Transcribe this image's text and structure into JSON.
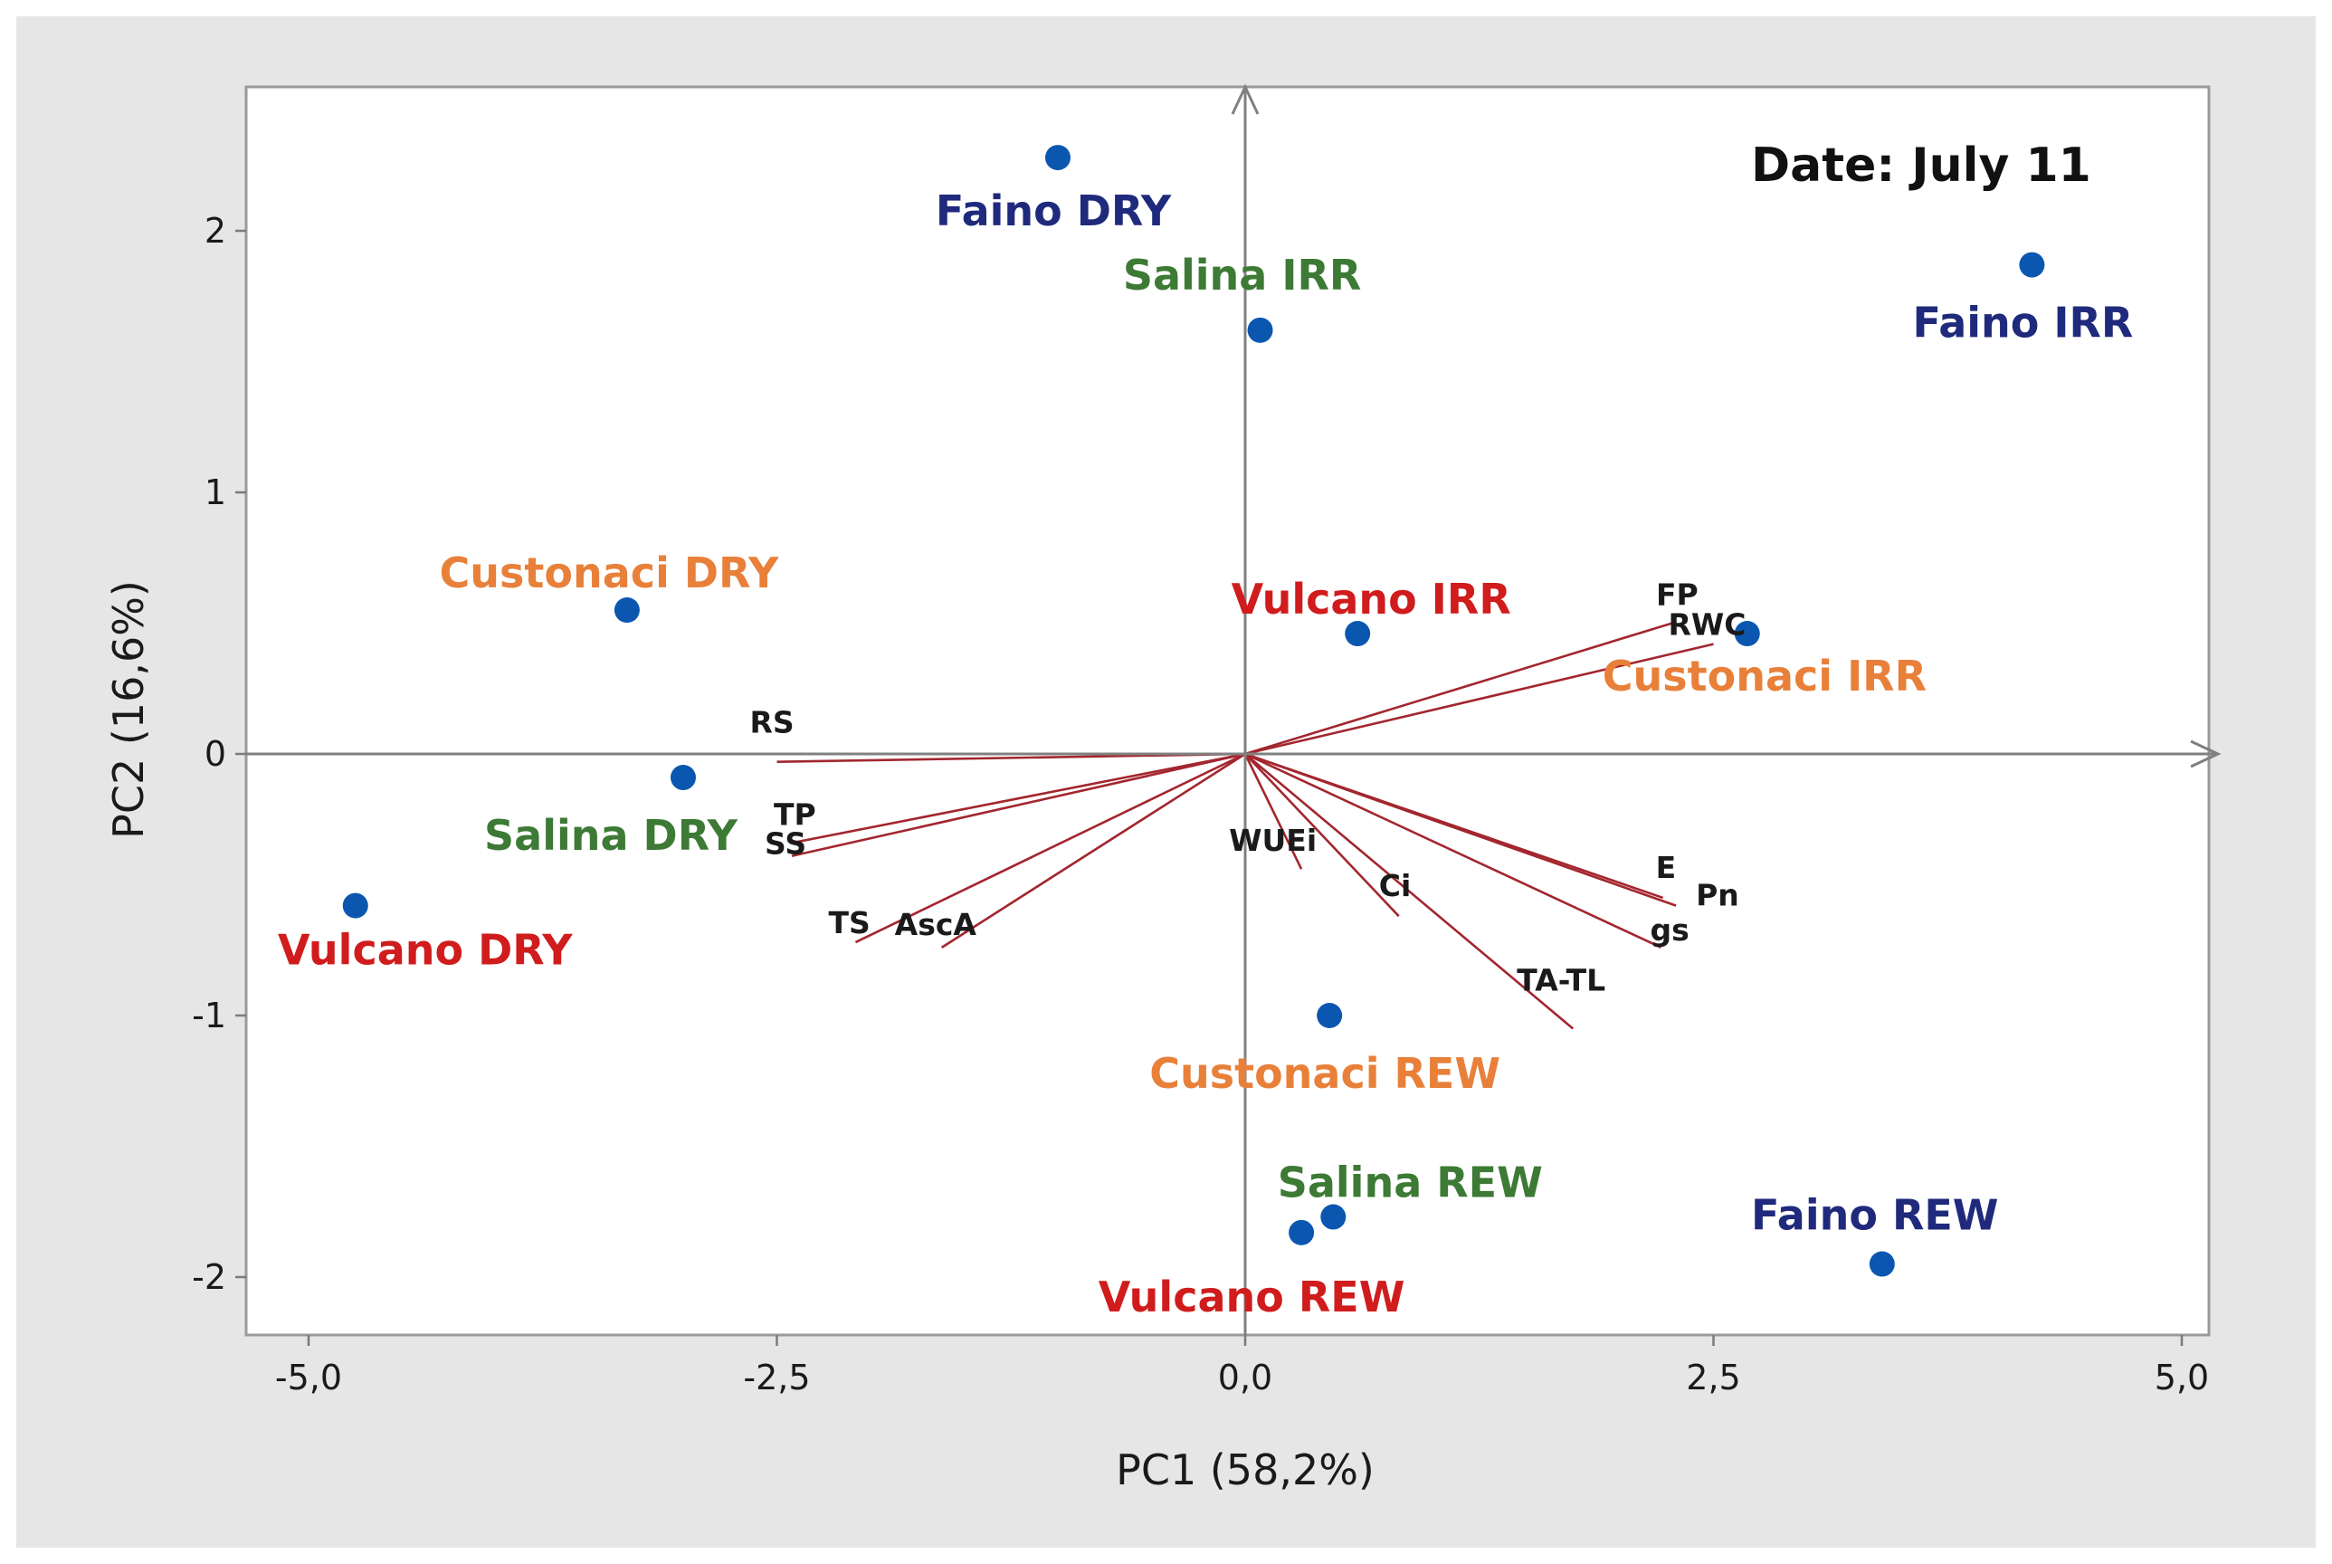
{
  "chart_data": {
    "type": "scatter",
    "subtype": "pca-biplot",
    "annotation": "Date: July 11",
    "xlabel": "PC1 (58,2%)",
    "ylabel": "PC2 (16,6%)",
    "xlim": [
      -5.2,
      5.2
    ],
    "ylim": [
      -2.2,
      2.5
    ],
    "xticks": [
      -5.0,
      -2.5,
      0.0,
      2.5,
      5.0
    ],
    "xtick_labels": [
      "-5,0",
      "-2,5",
      "0,0",
      "2,5",
      "5,0"
    ],
    "yticks": [
      -2,
      -1,
      0,
      1,
      2
    ],
    "ytick_labels": [
      "-2",
      "-1",
      "0",
      "1",
      "2"
    ],
    "colors": {
      "point": "#0b57b0",
      "loading": "#a3262e",
      "axis": "#808080",
      "Faino": "#1f2a7c",
      "Salina": "#3d7a35",
      "Custonaci": "#e8803a",
      "Vulcano": "#d01c1c"
    },
    "observations": [
      {
        "label": "Faino DRY",
        "group": "Faino",
        "x": -1.0,
        "y": 2.28,
        "label_pos": "below-left"
      },
      {
        "label": "Salina IRR",
        "group": "Salina",
        "x": 0.08,
        "y": 1.62,
        "label_pos": "above"
      },
      {
        "label": "Faino IRR",
        "group": "Faino",
        "x": 4.2,
        "y": 1.87,
        "label_pos": "below"
      },
      {
        "label": "Custonaci DRY",
        "group": "Custonaci",
        "x": -3.3,
        "y": 0.55,
        "label_pos": "above"
      },
      {
        "label": "Vulcano IRR",
        "group": "Vulcano",
        "x": 0.6,
        "y": 0.46,
        "label_pos": "above"
      },
      {
        "label": "Custonaci IRR",
        "group": "Custonaci",
        "x": 2.68,
        "y": 0.46,
        "label_pos": "below"
      },
      {
        "label": "Salina DRY",
        "group": "Salina",
        "x": -3.0,
        "y": -0.09,
        "label_pos": "below-left"
      },
      {
        "label": "Vulcano DRY",
        "group": "Vulcano",
        "x": -4.75,
        "y": -0.58,
        "label_pos": "below"
      },
      {
        "label": "Custonaci REW",
        "group": "Custonaci",
        "x": 0.45,
        "y": -1.0,
        "label_pos": "below"
      },
      {
        "label": "Salina REW",
        "group": "Salina",
        "x": 0.47,
        "y": -1.77,
        "label_pos": "above"
      },
      {
        "label": "Vulcano REW",
        "group": "Vulcano",
        "x": 0.3,
        "y": -1.83,
        "label_pos": "below"
      },
      {
        "label": "Faino REW",
        "group": "Faino",
        "x": 3.4,
        "y": -1.95,
        "label_pos": "above-left"
      }
    ],
    "loadings": [
      {
        "label": "FP",
        "x": 2.28,
        "y": 0.5
      },
      {
        "label": "RWC",
        "x": 2.5,
        "y": 0.42
      },
      {
        "label": "RS",
        "x": -2.5,
        "y": -0.03
      },
      {
        "label": "TP",
        "x": -2.42,
        "y": -0.34
      },
      {
        "label": "SS",
        "x": -2.42,
        "y": -0.39
      },
      {
        "label": "TS",
        "x": -2.08,
        "y": -0.72
      },
      {
        "label": "AscA",
        "x": -1.62,
        "y": -0.74
      },
      {
        "label": "WUEi",
        "x": 0.3,
        "y": -0.44
      },
      {
        "label": "Ci",
        "x": 0.82,
        "y": -0.62
      },
      {
        "label": "E",
        "x": 2.23,
        "y": -0.55
      },
      {
        "label": "Pn",
        "x": 2.3,
        "y": -0.58
      },
      {
        "label": "gs",
        "x": 2.22,
        "y": -0.74
      },
      {
        "label": "TA-TL",
        "x": 1.75,
        "y": -1.05
      }
    ]
  }
}
